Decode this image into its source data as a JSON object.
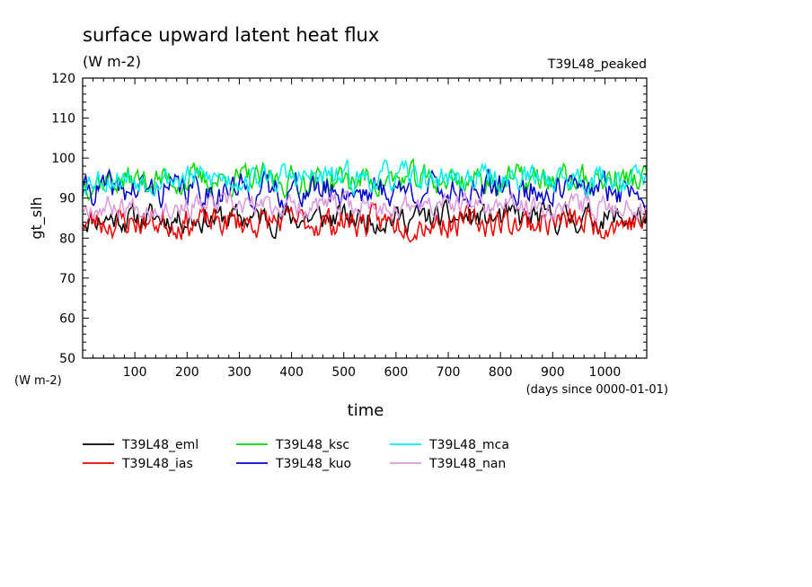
{
  "chart_data": {
    "type": "line",
    "title": "surface upward latent heat flux",
    "subtitle": "(W m-2)",
    "annotation": "T39L48_peaked",
    "ylabel": "gt_slh",
    "yunit": "(W m-2)",
    "xlabel": "time",
    "xunit": "(days since 0000-01-01)",
    "xlim": [
      0,
      1080
    ],
    "ylim": [
      50,
      120
    ],
    "xticks": [
      100,
      200,
      300,
      400,
      500,
      600,
      700,
      800,
      900,
      1000
    ],
    "yticks": [
      50,
      60,
      70,
      80,
      90,
      100,
      110,
      120
    ],
    "x_step_days": 3,
    "grid": false,
    "legend_position": "bottom-left",
    "series": [
      {
        "name": "T39L48_eml",
        "color": "#000000",
        "mean": 85,
        "amp": 2.8,
        "seed": 11
      },
      {
        "name": "T39L48_ias",
        "color": "#ee0000",
        "mean": 84,
        "amp": 3.0,
        "seed": 23
      },
      {
        "name": "T39L48_ksc",
        "color": "#00dd00",
        "mean": 94.5,
        "amp": 3.0,
        "seed": 37
      },
      {
        "name": "T39L48_kuo",
        "color": "#0000cc",
        "mean": 92,
        "amp": 3.2,
        "seed": 41
      },
      {
        "name": "T39L48_mca",
        "color": "#00eeee",
        "mean": 95,
        "amp": 2.8,
        "seed": 53
      },
      {
        "name": "T39L48_nan",
        "color": "#dd99dd",
        "mean": 88,
        "amp": 2.4,
        "seed": 67
      }
    ]
  }
}
